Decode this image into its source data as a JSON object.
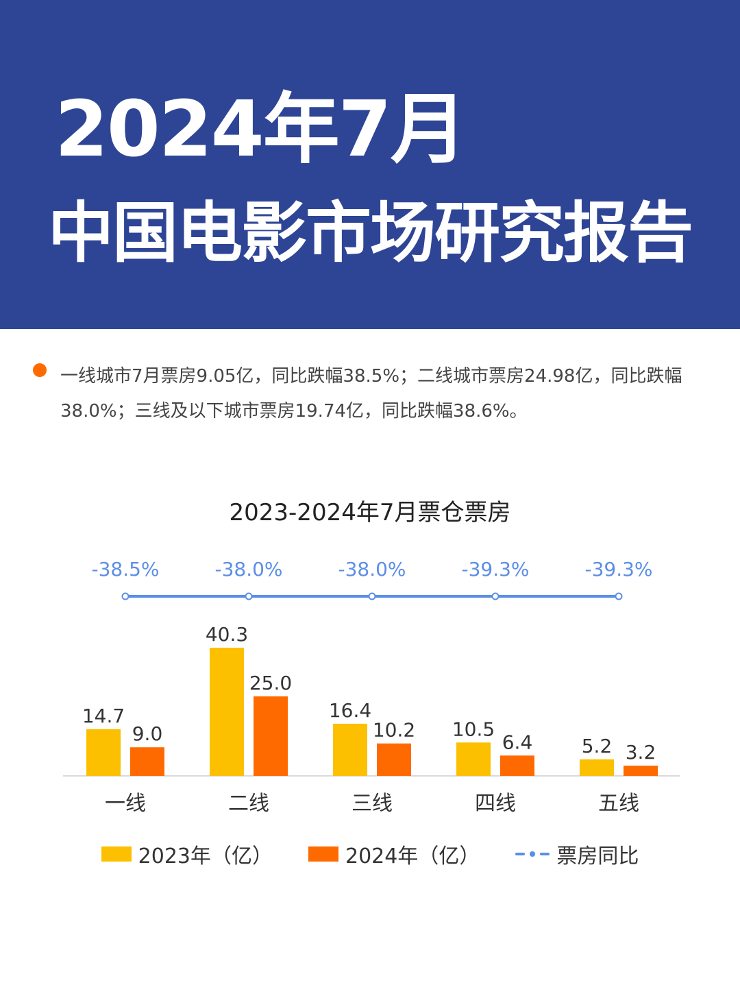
{
  "header": {
    "title_line1": "2024年7月",
    "title_line2": "中国电影市场研究报告"
  },
  "summary": {
    "text": "一线城市7月票房9.05亿，同比跌幅38.5%；二线城市票房24.98亿，同比跌幅38.0%；三线及以下城市票房19.74亿，同比跌幅38.6%。",
    "bullet_color": "#ff6a00"
  },
  "chart_data": {
    "type": "bar",
    "title": "2023-2024年7月票仓票房",
    "categories": [
      "一线",
      "二线",
      "三线",
      "四线",
      "五线"
    ],
    "series": [
      {
        "name": "2023年（亿）",
        "values": [
          14.7,
          40.3,
          16.4,
          10.5,
          5.2
        ],
        "color": "#fcc000"
      },
      {
        "name": "2024年（亿）",
        "values": [
          9.0,
          25.0,
          10.2,
          6.4,
          3.2
        ],
        "color": "#ff6a00"
      }
    ],
    "yoy": {
      "name": "票房同比",
      "labels": [
        "-38.5%",
        "-38.0%",
        "-38.0%",
        "-39.3%",
        "-39.3%"
      ],
      "color": "#5b8ee6"
    },
    "ylim": [
      0,
      40.3
    ],
    "grid": false,
    "legend_position": "bottom"
  }
}
